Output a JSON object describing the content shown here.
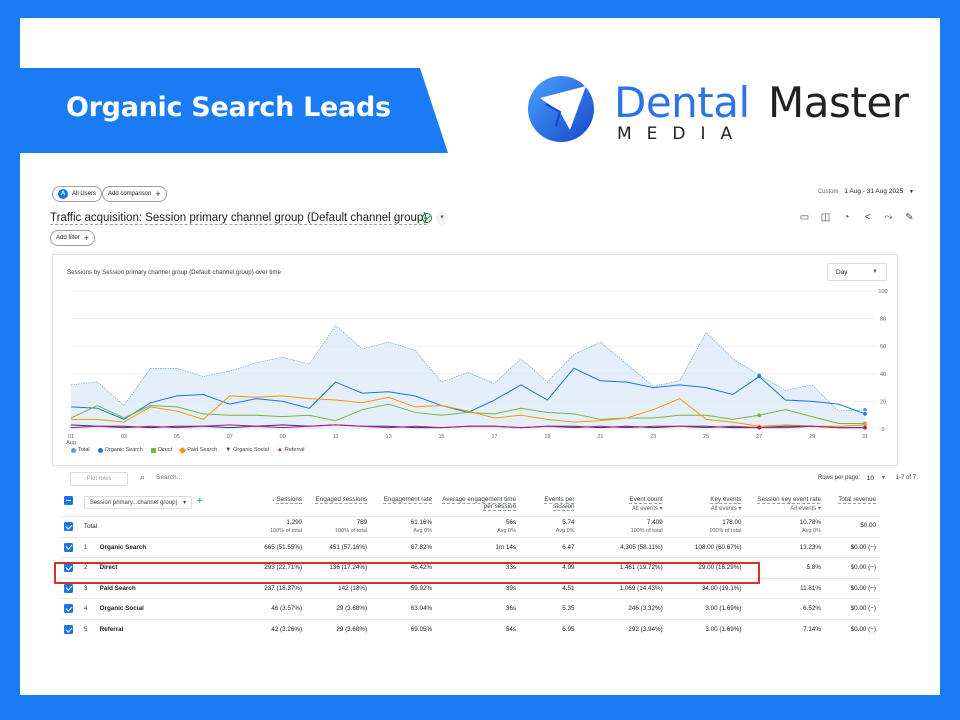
{
  "banner": {
    "title": "Organic Search Leads",
    "brand_part1": "Dental",
    "brand_part2": "Master",
    "brand_sub": "MEDIA",
    "colors": {
      "background": "#1a7cf2",
      "brand_blue": "#2a74e8"
    },
    "logo_icon": "paper-plane-globe-logo"
  },
  "ga": {
    "segment_chip": "All Users",
    "segment_badge": "A",
    "add_comparison": "Add comparison",
    "date_label": "Custom",
    "date_range": "1 Aug - 31 Aug 2025",
    "report_title": "Traffic acquisition: Session primary channel group (Default channel group)",
    "add_filter": "Add filter",
    "toolbar_icons": [
      "share-report-icon",
      "compare-icon",
      "insights-icon",
      "share-icon",
      "trend-icon",
      "edit-icon"
    ],
    "chart_title": "Sessions by Session primary channel group (Default channel group) over time",
    "granularity": "Day",
    "legend": [
      {
        "label": "Total",
        "color": "#5a9bd4",
        "marker": "pin"
      },
      {
        "label": "Organic Search",
        "color": "#1a73e8",
        "marker": "circle"
      },
      {
        "label": "Direct",
        "color": "#7cb342",
        "marker": "square"
      },
      {
        "label": "Paid Search",
        "color": "#f29900",
        "marker": "diamond"
      },
      {
        "label": "Organic Social",
        "color": "#1f3a93",
        "marker": "triangle-down"
      },
      {
        "label": "Referral",
        "color": "#c2185b",
        "marker": "triangle"
      }
    ],
    "plot_rows": "Plot rows",
    "search_placeholder": "Search...",
    "rows_per_page_label": "Rows per page:",
    "rows_per_page": "10",
    "pager": "1-7 of 7",
    "dimension_select": "Session primary...channel group)",
    "columns": [
      {
        "name": "Sessions",
        "sub": "",
        "sorted": true
      },
      {
        "name": "Engaged sessions",
        "sub": ""
      },
      {
        "name": "Engagement rate",
        "sub": ""
      },
      {
        "name": "Average engagement time per session",
        "sub": ""
      },
      {
        "name": "Events per session",
        "sub": ""
      },
      {
        "name": "Event count",
        "sub": "All events"
      },
      {
        "name": "Key events",
        "sub": "All events"
      },
      {
        "name": "Session key event rate",
        "sub": "All events"
      },
      {
        "name": "Total revenue",
        "sub": ""
      }
    ],
    "totals": {
      "label": "Total",
      "values": [
        "1,290",
        "789",
        "61.16%",
        "56s",
        "5.74",
        "7,409",
        "178.00",
        "10.78%",
        "$0.00"
      ],
      "subs": [
        "100% of total",
        "100% of total",
        "Avg 0%",
        "Avg 0%",
        "Avg 0%",
        "100% of total",
        "100% of total",
        "Avg 0%",
        ""
      ]
    },
    "rows": [
      {
        "idx": "1",
        "name": "Organic Search",
        "values": [
          "665 (51.55%)",
          "451 (57.16%)",
          "67.82%",
          "1m 14s",
          "6.47",
          "4,305 (58.11%)",
          "108.00 (60.67%)",
          "13.23%",
          "$0.00 (−)"
        ]
      },
      {
        "idx": "2",
        "name": "Direct",
        "values": [
          "293 (22.71%)",
          "136 (17.24%)",
          "46.42%",
          "33s",
          "4.99",
          "1,461 (19.72%)",
          "29.00 (16.29%)",
          "5.8%",
          "$0.00 (−)"
        ]
      },
      {
        "idx": "3",
        "name": "Paid Search",
        "values": [
          "237 (18.37%)",
          "142 (18%)",
          "59.92%",
          "39s",
          "4.51",
          "1,069 (14.43%)",
          "34.00 (19.1%)",
          "11.81%",
          "$0.00 (−)"
        ]
      },
      {
        "idx": "4",
        "name": "Organic Social",
        "values": [
          "46 (3.57%)",
          "29 (3.68%)",
          "63.04%",
          "36s",
          "5.35",
          "246 (3.32%)",
          "3.00 (1.69%)",
          "6.52%",
          "$0.00 (−)"
        ]
      },
      {
        "idx": "5",
        "name": "Referral",
        "values": [
          "42 (3.26%)",
          "29 (3.68%)",
          "69.05%",
          "54s",
          "6.95",
          "292 (3.94%)",
          "3.00 (1.69%)",
          "7.14%",
          "$0.00 (−)"
        ]
      }
    ]
  },
  "chart_data": {
    "type": "line",
    "title": "Sessions by Session primary channel group (Default channel group) over time",
    "x": [
      1,
      2,
      3,
      4,
      5,
      6,
      7,
      8,
      9,
      10,
      11,
      12,
      13,
      14,
      15,
      16,
      17,
      18,
      19,
      20,
      21,
      22,
      23,
      24,
      25,
      26,
      27,
      28,
      29,
      30,
      31
    ],
    "x_tick_labels": [
      "01 Aug",
      "03",
      "05",
      "07",
      "09",
      "11",
      "13",
      "15",
      "17",
      "19",
      "21",
      "23",
      "25",
      "27",
      "29",
      "31"
    ],
    "ylim": [
      0,
      100
    ],
    "y_ticks": [
      0,
      20,
      40,
      60,
      80,
      100
    ],
    "y_axis_side": "right",
    "legend_position": "bottom",
    "grid": true,
    "series": [
      {
        "name": "Total",
        "color": "#5a9bd4",
        "area": true,
        "values": [
          32,
          34,
          17,
          44,
          44,
          38,
          42,
          48,
          52,
          47,
          75,
          58,
          63,
          57,
          34,
          41,
          33,
          51,
          34,
          54,
          63,
          47,
          31,
          35,
          70,
          51,
          39,
          28,
          32,
          13,
          14
        ]
      },
      {
        "name": "Organic Search",
        "color": "#1a73e8",
        "values": [
          16,
          15,
          7,
          19,
          24,
          25,
          18,
          22,
          20,
          15,
          34,
          26,
          27,
          24,
          17,
          12,
          21,
          32,
          21,
          44,
          35,
          34,
          30,
          32,
          30,
          25,
          38,
          21,
          20,
          18,
          11
        ]
      },
      {
        "name": "Direct",
        "color": "#7cb342",
        "values": [
          8,
          17,
          8,
          17,
          16,
          11,
          10,
          10,
          9,
          10,
          6,
          14,
          18,
          12,
          10,
          12,
          11,
          15,
          12,
          11,
          7,
          8,
          8,
          10,
          10,
          7,
          10,
          14,
          9,
          4,
          4
        ]
      },
      {
        "name": "Paid Search",
        "color": "#f29900",
        "values": [
          7,
          7,
          5,
          16,
          13,
          7,
          24,
          23,
          24,
          22,
          21,
          19,
          23,
          16,
          17,
          13,
          8,
          10,
          7,
          5,
          6,
          8,
          14,
          22,
          7,
          5,
          2,
          3,
          2,
          2,
          3
        ]
      },
      {
        "name": "Organic Social",
        "color": "#1f3a93",
        "values": [
          3,
          2,
          2,
          1,
          2,
          2,
          1,
          2,
          3,
          2,
          3,
          2,
          2,
          1,
          1,
          2,
          2,
          1,
          2,
          2,
          1,
          2,
          1,
          2,
          2,
          1,
          1,
          2,
          2,
          1,
          1
        ]
      },
      {
        "name": "Referral",
        "color": "#c2185b",
        "values": [
          1,
          2,
          1,
          2,
          1,
          2,
          3,
          2,
          1,
          2,
          3,
          2,
          1,
          2,
          1,
          2,
          2,
          1,
          2,
          1,
          2,
          1,
          2,
          2,
          1,
          2,
          1,
          1,
          2,
          1,
          1
        ]
      }
    ]
  }
}
